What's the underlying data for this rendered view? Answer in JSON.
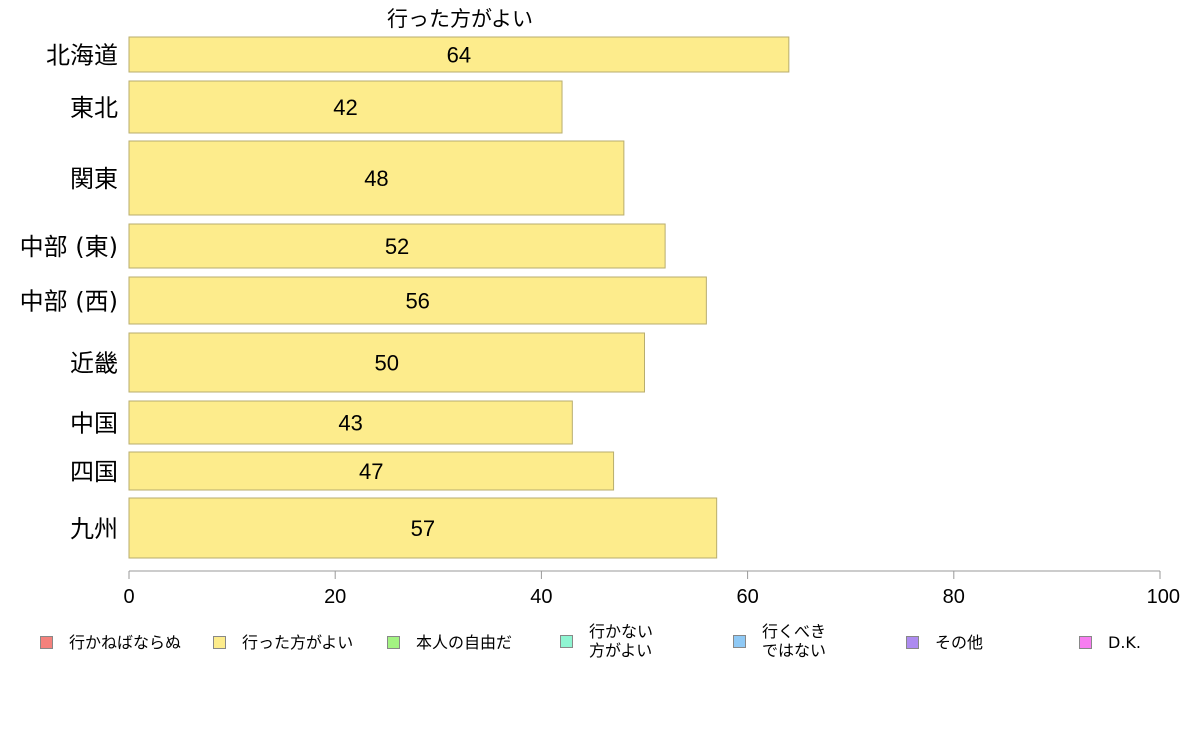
{
  "chart_data": {
    "type": "bar",
    "orientation": "horizontal",
    "title": "行った方がよい",
    "categories": [
      "北海道",
      "東北",
      "関東",
      "中部 (東)",
      "中部 (西)",
      "近畿",
      "中国",
      "四国",
      "九州"
    ],
    "series": [
      {
        "name": "行った方がよい",
        "values": [
          64,
          42,
          48,
          52,
          56,
          50,
          43,
          47,
          57
        ]
      }
    ],
    "xlim": [
      0,
      100
    ],
    "xticks": [
      "0",
      "20",
      "40",
      "60",
      "80",
      "100"
    ],
    "bar_color": "#fdec8c",
    "bar_border": "#b8ad6e",
    "grid": false
  },
  "legend": {
    "items": [
      {
        "label": "行かねばならぬ",
        "color": "#f4817c"
      },
      {
        "label": "行った方がよい",
        "color": "#fdec8c"
      },
      {
        "label": "本人の自由だ",
        "color": "#a3f382"
      },
      {
        "label": "行かない\n方がよい",
        "color": "#8ff5d2"
      },
      {
        "label": "行くべき\nではない",
        "color": "#8fc9f5"
      },
      {
        "label": "その他",
        "color": "#ad8bf0"
      },
      {
        "label": "D.K.",
        "color": "#f77df0"
      }
    ]
  }
}
